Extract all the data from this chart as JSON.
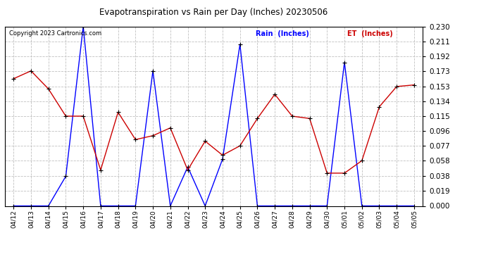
{
  "title": "Evapotranspiration vs Rain per Day (Inches) 20230506",
  "copyright": "Copyright 2023 Cartronics.com",
  "dates": [
    "04/12",
    "04/13",
    "04/14",
    "04/15",
    "04/16",
    "04/17",
    "04/18",
    "04/19",
    "04/20",
    "04/21",
    "04/22",
    "04/23",
    "04/24",
    "04/25",
    "04/26",
    "04/27",
    "04/28",
    "04/29",
    "04/30",
    "05/01",
    "05/02",
    "05/03",
    "05/04",
    "05/05"
  ],
  "rain": [
    0.0,
    0.0,
    0.0,
    0.038,
    0.23,
    0.0,
    0.0,
    0.0,
    0.173,
    0.0,
    0.05,
    0.0,
    0.06,
    0.207,
    0.0,
    0.0,
    0.0,
    0.0,
    0.0,
    0.184,
    0.0,
    0.0,
    0.0,
    0.0
  ],
  "et": [
    0.163,
    0.173,
    0.15,
    0.115,
    0.115,
    0.046,
    0.12,
    0.085,
    0.09,
    0.1,
    0.046,
    0.083,
    0.065,
    0.077,
    0.112,
    0.143,
    0.115,
    0.112,
    0.042,
    0.042,
    0.058,
    0.127,
    0.153,
    0.155
  ],
  "rain_color": "#0000ff",
  "et_color": "#cc0000",
  "marker_color": "#000000",
  "background_color": "#ffffff",
  "grid_color": "#c0c0c0",
  "title_color": "#000000",
  "copyright_color": "#000000",
  "ylim": [
    0.0,
    0.23
  ],
  "yticks": [
    0.0,
    0.019,
    0.038,
    0.058,
    0.077,
    0.096,
    0.115,
    0.134,
    0.153,
    0.173,
    0.192,
    0.211,
    0.23
  ],
  "figwidth": 6.9,
  "figheight": 3.75,
  "dpi": 100
}
